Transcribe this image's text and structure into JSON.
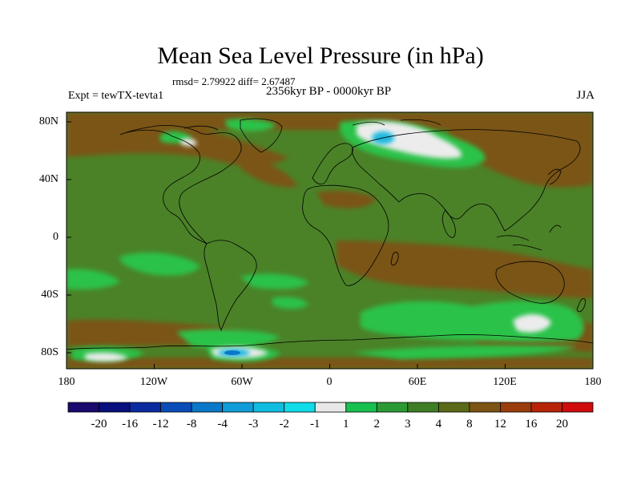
{
  "header": {
    "title": "Mean Sea Level Pressure (in hPa)",
    "stats": "rmsd= 2.79922  diff= 2.67487",
    "experiment": "Expt = tewTX-tevta1",
    "period": "2356kyr BP - 0000kyr BP",
    "season": "JJA"
  },
  "axes": {
    "lat_labels": [
      "80N",
      "40N",
      "0",
      "40S",
      "80S"
    ],
    "lon_labels": [
      "180",
      "120W",
      "60W",
      "0",
      "60E",
      "120E",
      "180"
    ]
  },
  "colorbar": {
    "labels": [
      "-20",
      "-16",
      "-12",
      "-8",
      "-4",
      "-3",
      "-2",
      "-1",
      "1",
      "2",
      "3",
      "4",
      "8",
      "12",
      "16",
      "20"
    ],
    "colors": [
      "#1a0a6e",
      "#08107e",
      "#0a2aa0",
      "#0a4cb8",
      "#0a78c8",
      "#109cd8",
      "#10bde0",
      "#10dcea",
      "#e8e8e8",
      "#18c050",
      "#2c9a34",
      "#3f7e24",
      "#5a6a18",
      "#7c5414",
      "#9a3c0c",
      "#b82408",
      "#d00c0c"
    ]
  },
  "map_colors": {
    "base": "#4b8228",
    "brown": "#7a5418",
    "light_green": "#29c24a",
    "white": "#e8e8e8",
    "cyan": "#1ab8de",
    "blue": "#0a78c8"
  }
}
